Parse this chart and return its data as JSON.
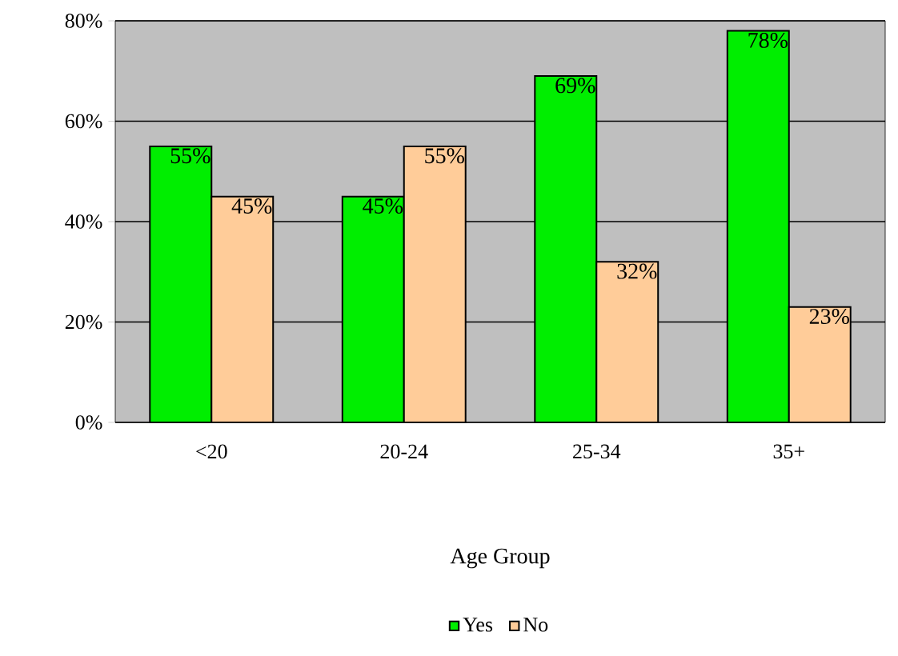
{
  "chart_data": {
    "type": "bar",
    "xlabel": "Age Group",
    "categories": [
      "<20",
      "20-24",
      "25-34",
      "35+"
    ],
    "series": [
      {
        "name": "Yes",
        "color": "#00ee00",
        "values": [
          55,
          45,
          69,
          78
        ],
        "value_labels": [
          "55%",
          "45%",
          "69%",
          "78%"
        ]
      },
      {
        "name": "No",
        "color": "#ffcc99",
        "values": [
          45,
          55,
          32,
          23
        ],
        "value_labels": [
          "45%",
          "55%",
          "32%",
          "23%"
        ]
      }
    ],
    "ylim": [
      0,
      80
    ],
    "yticks": [
      {
        "value": 0,
        "label": "0%"
      },
      {
        "value": 20,
        "label": "20%"
      },
      {
        "value": 40,
        "label": "40%"
      },
      {
        "value": 60,
        "label": "60%"
      },
      {
        "value": 80,
        "label": "80%"
      }
    ],
    "grid": "y",
    "legend": "bottom"
  }
}
